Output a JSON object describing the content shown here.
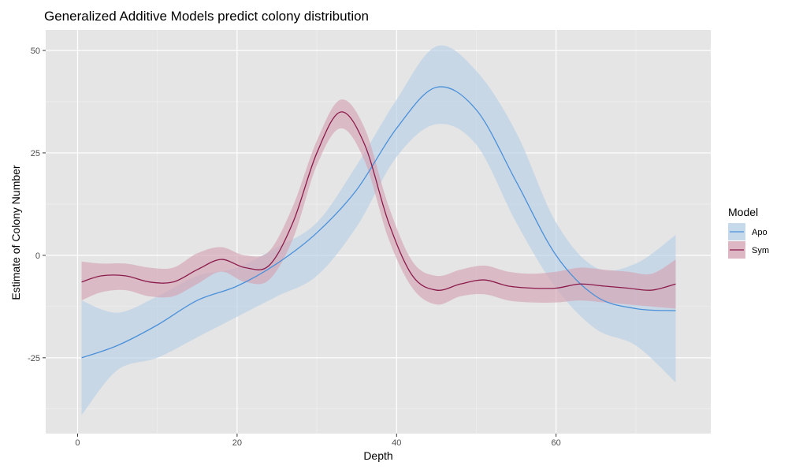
{
  "chart_data": {
    "type": "line",
    "title": "Generalized Additive Models predict colony distribution",
    "xlabel": "Depth",
    "ylabel": "Estimate of Colony Number",
    "xlim": [
      -4,
      79.4
    ],
    "ylim": [
      -43.5,
      55
    ],
    "x_ticks": [
      0,
      20,
      40,
      60
    ],
    "y_ticks": [
      50,
      25,
      0,
      -25
    ],
    "y_tick_labels": [
      "50",
      "25",
      "0",
      "-25"
    ],
    "grid": true,
    "legend": {
      "title": "Model",
      "position": "right"
    },
    "series": [
      {
        "name": "Apo",
        "color": "#4a90d9",
        "fill_color": "#b8cfe6",
        "x": [
          0.5,
          5,
          10,
          15,
          20,
          25,
          30,
          35,
          40,
          45,
          50,
          55,
          60,
          65,
          70,
          75
        ],
        "y": [
          -25,
          -22,
          -17,
          -11,
          -7.5,
          -2,
          5.5,
          16,
          31,
          41,
          35.5,
          18,
          0,
          -10,
          -13,
          -13.5
        ],
        "lower": [
          -39,
          -28,
          -25,
          -20,
          -15,
          -10,
          -5,
          7,
          24,
          32,
          27,
          8,
          -8,
          -18,
          -22,
          -31
        ],
        "upper": [
          -11,
          -14,
          -10,
          -5,
          -3,
          2,
          8,
          22,
          38,
          51,
          45,
          30,
          8,
          -3,
          -2,
          5
        ]
      },
      {
        "name": "Sym",
        "color": "#8b1a4a",
        "fill_color": "#d4a5b4",
        "x": [
          0.5,
          3,
          6,
          9,
          12,
          15,
          18,
          21,
          24,
          27,
          30,
          33,
          36,
          39,
          42,
          45,
          48,
          51,
          54,
          57,
          60,
          63,
          66,
          69,
          72,
          75
        ],
        "y": [
          -6.5,
          -5,
          -5,
          -6.5,
          -6.5,
          -3.5,
          -1,
          -3,
          -2.5,
          8,
          25,
          35,
          27,
          8,
          -5,
          -8.5,
          -7,
          -6,
          -7.5,
          -8,
          -8,
          -7,
          -7.5,
          -8,
          -8.5,
          -7
        ],
        "lower": [
          -11,
          -9,
          -8.5,
          -10,
          -10,
          -7,
          -4,
          -6.5,
          -6,
          4,
          22,
          31,
          23,
          4,
          -8,
          -12,
          -10,
          -9.5,
          -11,
          -11.5,
          -11.5,
          -11,
          -11.5,
          -12,
          -12.5,
          -13
        ],
        "upper": [
          -1.5,
          -2,
          -2,
          -3,
          -3,
          0.5,
          2,
          0,
          1,
          12,
          28,
          38,
          31,
          12,
          -1.5,
          -5,
          -3.5,
          -2.5,
          -4,
          -4.5,
          -4,
          -3,
          -3.5,
          -4,
          -4.5,
          -1
        ]
      }
    ]
  }
}
